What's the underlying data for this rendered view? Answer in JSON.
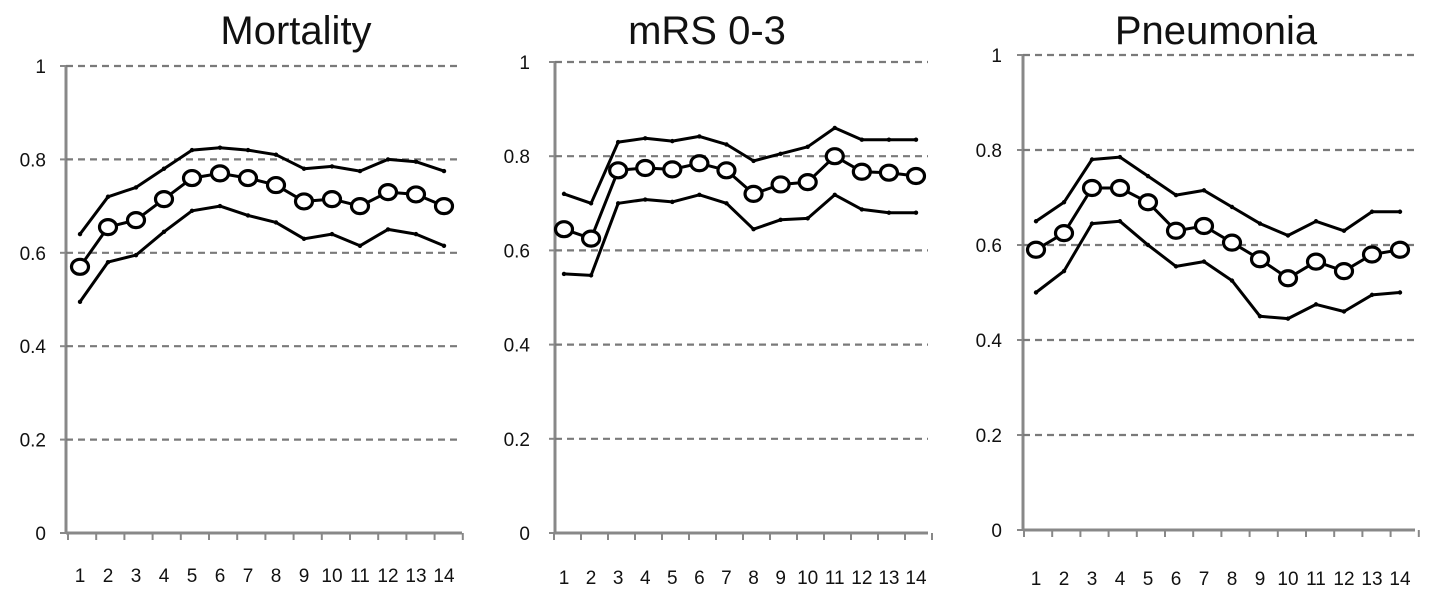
{
  "chart_data": [
    {
      "type": "line",
      "title": "Mortality",
      "categories": [
        "1",
        "2",
        "3",
        "4",
        "5",
        "6",
        "7",
        "8",
        "9",
        "10",
        "11",
        "12",
        "13",
        "14"
      ],
      "x_tick_labels": [
        "1",
        "2",
        "3",
        "4",
        "5",
        "6",
        "7",
        "8",
        "9",
        "10",
        "11",
        "12",
        "13",
        "14"
      ],
      "y_tick_labels": [
        "0",
        "0.2",
        "0.4",
        "0.6",
        "0.8",
        "1"
      ],
      "ylim": [
        0,
        1
      ],
      "grid": "horizontal dashed",
      "series": [
        {
          "style": "line",
          "values": [
            0.64,
            0.72,
            0.74,
            0.78,
            0.82,
            0.825,
            0.82,
            0.81,
            0.78,
            0.785,
            0.775,
            0.8,
            0.795,
            0.775
          ]
        },
        {
          "style": "line-with-circle-markers",
          "values": [
            0.57,
            0.655,
            0.67,
            0.715,
            0.76,
            0.77,
            0.76,
            0.745,
            0.71,
            0.715,
            0.7,
            0.73,
            0.725,
            0.7
          ]
        },
        {
          "style": "line",
          "values": [
            0.495,
            0.58,
            0.595,
            0.645,
            0.69,
            0.7,
            0.68,
            0.665,
            0.63,
            0.64,
            0.615,
            0.65,
            0.64,
            0.615
          ]
        }
      ]
    },
    {
      "type": "line",
      "title": "mRS 0-3",
      "categories": [
        "1",
        "2",
        "3",
        "4",
        "5",
        "6",
        "7",
        "8",
        "9",
        "10",
        "11",
        "12",
        "13",
        "14"
      ],
      "x_tick_labels": [
        "1",
        "2",
        "3",
        "4",
        "5",
        "6",
        "7",
        "8",
        "9",
        "10",
        "11",
        "12",
        "13",
        "14"
      ],
      "y_tick_labels": [
        "0",
        "0.2",
        "0.4",
        "0.6",
        "0.8",
        "1"
      ],
      "ylim": [
        0,
        1
      ],
      "grid": "horizontal dashed",
      "series": [
        {
          "style": "line",
          "values": [
            0.72,
            0.7,
            0.83,
            0.838,
            0.832,
            0.842,
            0.825,
            0.79,
            0.805,
            0.82,
            0.86,
            0.835,
            0.835,
            0.835
          ]
        },
        {
          "style": "line-with-circle-markers",
          "values": [
            0.645,
            0.625,
            0.77,
            0.775,
            0.772,
            0.785,
            0.77,
            0.72,
            0.74,
            0.745,
            0.8,
            0.767,
            0.765,
            0.758
          ]
        },
        {
          "style": "line",
          "values": [
            0.55,
            0.547,
            0.7,
            0.708,
            0.703,
            0.718,
            0.7,
            0.645,
            0.665,
            0.668,
            0.718,
            0.687,
            0.68,
            0.68
          ]
        }
      ]
    },
    {
      "type": "line",
      "title": "Pneumonia",
      "categories": [
        "1",
        "2",
        "3",
        "4",
        "5",
        "6",
        "7",
        "8",
        "9",
        "10",
        "11",
        "12",
        "13",
        "14"
      ],
      "x_tick_labels": [
        "1",
        "2",
        "3",
        "4",
        "5",
        "6",
        "7",
        "8",
        "9",
        "10",
        "11",
        "12",
        "13",
        "14"
      ],
      "y_tick_labels": [
        "0",
        "0.2",
        "0.4",
        "0.6",
        "0.8",
        "1"
      ],
      "ylim": [
        0,
        1
      ],
      "grid": "horizontal dashed",
      "series": [
        {
          "style": "line",
          "values": [
            0.65,
            0.69,
            0.78,
            0.785,
            0.745,
            0.705,
            0.715,
            0.68,
            0.645,
            0.62,
            0.65,
            0.63,
            0.67,
            0.67
          ]
        },
        {
          "style": "line-with-circle-markers",
          "values": [
            0.59,
            0.625,
            0.72,
            0.72,
            0.69,
            0.63,
            0.64,
            0.605,
            0.57,
            0.53,
            0.565,
            0.545,
            0.58,
            0.59
          ]
        },
        {
          "style": "line",
          "values": [
            0.5,
            0.545,
            0.645,
            0.65,
            0.6,
            0.555,
            0.565,
            0.525,
            0.45,
            0.445,
            0.475,
            0.46,
            0.495,
            0.5
          ]
        }
      ]
    }
  ]
}
